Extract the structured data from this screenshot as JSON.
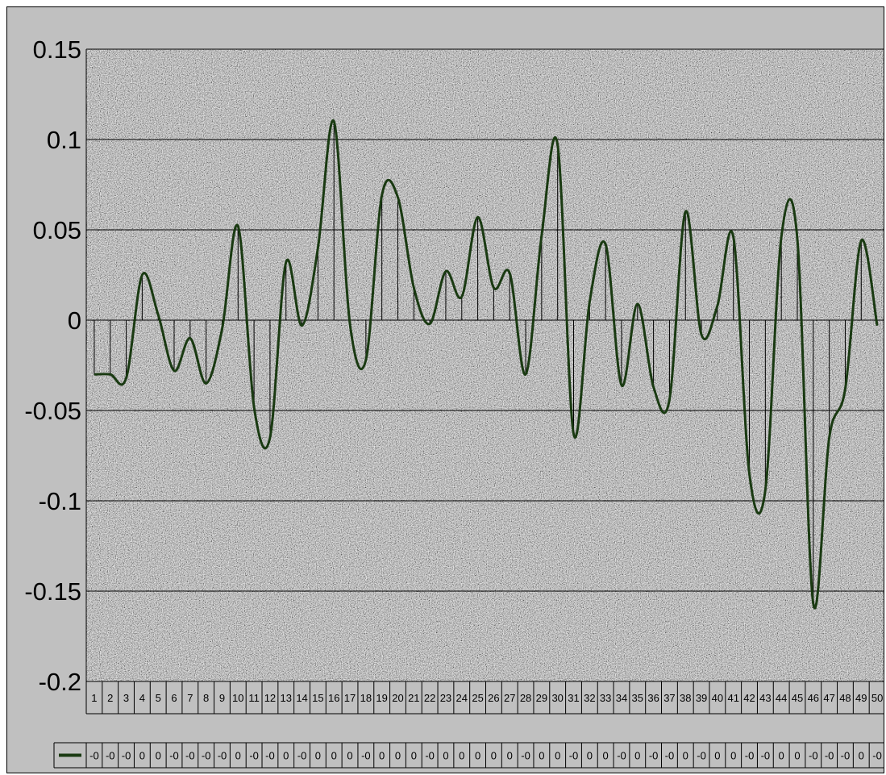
{
  "chart_data": {
    "type": "line",
    "title": "",
    "xlabel": "",
    "ylabel": "",
    "ylim": [
      -0.2,
      0.15
    ],
    "y_ticks": [
      0.15,
      0.1,
      0.05,
      0,
      -0.05,
      -0.1,
      -0.15,
      -0.2
    ],
    "y_tick_labels": [
      "0.15",
      "0.1",
      "0.05",
      "0",
      "-0.05",
      "-0.1",
      "-0.15",
      "-0.2"
    ],
    "grid": true,
    "smooth": true,
    "drop_lines": true,
    "data_table": true,
    "legend": "data-table-key",
    "line_color": "#1a3a12",
    "categories": [
      "1",
      "2",
      "3",
      "4",
      "5",
      "6",
      "7",
      "8",
      "9",
      "10",
      "11",
      "12",
      "13",
      "14",
      "15",
      "16",
      "17",
      "18",
      "19",
      "20",
      "21",
      "22",
      "23",
      "24",
      "25",
      "26",
      "27",
      "28",
      "29",
      "30",
      "31",
      "32",
      "33",
      "34",
      "35",
      "36",
      "37",
      "38",
      "39",
      "40",
      "41",
      "42",
      "43",
      "44",
      "45",
      "46",
      "47",
      "48",
      "49",
      "50"
    ],
    "values": [
      -0.03,
      -0.03,
      -0.032,
      0.025,
      0.003,
      -0.028,
      -0.01,
      -0.035,
      -0.005,
      0.052,
      -0.048,
      -0.065,
      0.032,
      -0.003,
      0.04,
      0.11,
      -0.002,
      -0.022,
      0.069,
      0.068,
      0.018,
      -0.002,
      0.027,
      0.013,
      0.057,
      0.018,
      0.026,
      -0.03,
      0.047,
      0.097,
      -0.063,
      0.01,
      0.042,
      -0.036,
      0.009,
      -0.037,
      -0.044,
      0.06,
      -0.008,
      0.008,
      0.046,
      -0.085,
      -0.094,
      0.046,
      0.045,
      -0.157,
      -0.065,
      -0.038,
      0.044,
      -0.003
    ],
    "data_labels": [
      "-0",
      "-0",
      "-0",
      "0",
      "0",
      "-0",
      "-0",
      "-0",
      "-0",
      "0",
      "-0",
      "-0",
      "0",
      "-0",
      "0",
      "0",
      "0",
      "-0",
      "0",
      "0",
      "0",
      "-0",
      "0",
      "0",
      "0",
      "0",
      "0",
      "-0",
      "0",
      "0",
      "-0",
      "0",
      "0",
      "-0",
      "0",
      "-0",
      "-0",
      "0",
      "-0",
      "0",
      "0",
      "-0",
      "-0",
      "0",
      "0",
      "-0",
      "-0",
      "-0",
      "0",
      "-0"
    ]
  }
}
